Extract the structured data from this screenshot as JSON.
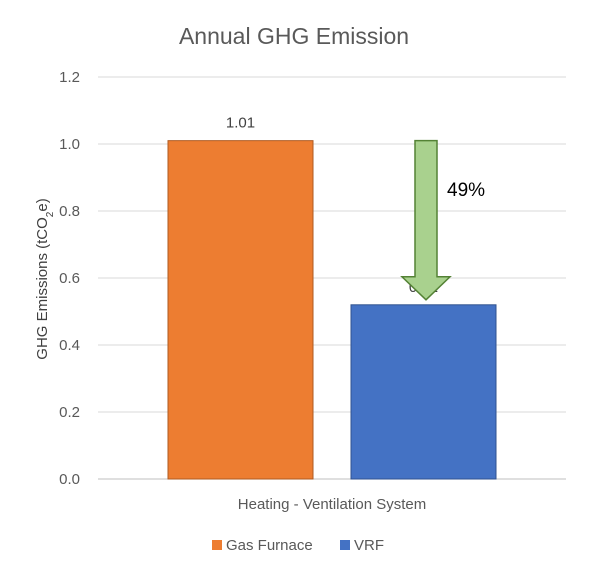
{
  "chart_data": {
    "type": "bar",
    "title": "Annual GHG Emission",
    "ylabel_main": "GHG Emissions (tCO",
    "ylabel_sub": "2",
    "ylabel_end": "e)",
    "xlabel": "Heating - Ventilation System",
    "ylim": [
      0,
      1.2
    ],
    "yticks": [
      "0.0",
      "0.2",
      "0.4",
      "0.6",
      "0.8",
      "1.0",
      "1.2"
    ],
    "grid": true,
    "legend_position": "bottom",
    "series": [
      {
        "name": "Gas Furnace",
        "value": 1.01,
        "label": "1.01",
        "color": "#ED7D31",
        "stroke": "#AE5A21"
      },
      {
        "name": "VRF",
        "value": 0.52,
        "label": "0.52",
        "color": "#4472C4",
        "stroke": "#2F528F"
      }
    ],
    "annotation": {
      "text": "49%",
      "from_value": 1.01,
      "to_value": 0.52,
      "arrow_fill": "#A9D18E",
      "arrow_stroke": "#548235"
    }
  }
}
